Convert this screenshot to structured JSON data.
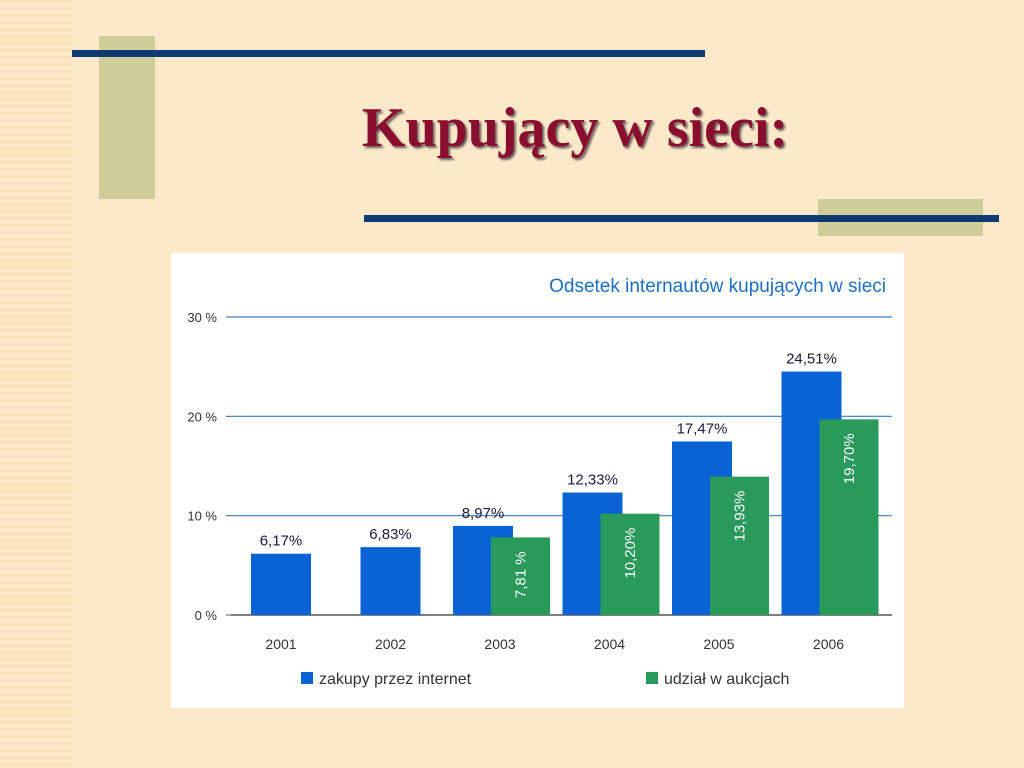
{
  "slide": {
    "title": "Kupujący w sieci:"
  },
  "colors": {
    "background": "#fbe9c9",
    "title": "#8a0f2e",
    "rule": "#0f3a72",
    "olive": "#cfcd9a",
    "chart_title": "#1e6fc2"
  },
  "chart_data": {
    "type": "bar",
    "title": "Odsetek internautów kupujących w sieci",
    "xlabel": "",
    "ylabel": "",
    "categories": [
      "2001",
      "2002",
      "2003",
      "2004",
      "2005",
      "2006"
    ],
    "ylim": [
      0,
      30
    ],
    "yticks": [
      0,
      10,
      20,
      30
    ],
    "ytick_labels": [
      "0 %",
      "10 %",
      "20 %",
      "30 %"
    ],
    "grid": true,
    "legend": "bottom",
    "series": [
      {
        "name": "zakupy przez internet",
        "color": "#0a63d4",
        "values": [
          6.17,
          6.83,
          8.97,
          12.33,
          17.47,
          24.51
        ],
        "labels": [
          "6,17%",
          "6,83%",
          "8,97%",
          "12,33%",
          "17,47%",
          "24,51%"
        ]
      },
      {
        "name": "udział w aukcjach",
        "color": "#2a9a5a",
        "values": [
          null,
          null,
          7.81,
          10.2,
          13.93,
          19.7
        ],
        "labels": [
          "",
          "",
          "7,81 %",
          "10,20%",
          "13,93%",
          "19,70%"
        ]
      }
    ]
  }
}
